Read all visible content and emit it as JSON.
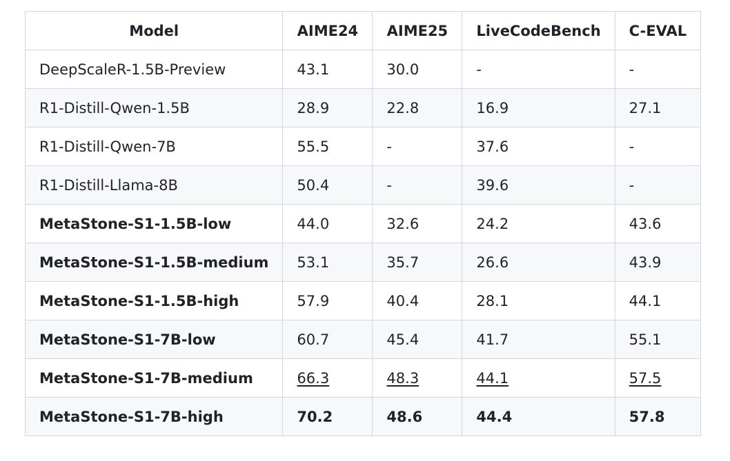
{
  "table": {
    "headers": [
      "Model",
      "AIME24",
      "AIME25",
      "LiveCodeBench",
      "C-EVAL"
    ],
    "rows": [
      {
        "cells": [
          "DeepScaleR-1.5B-Preview",
          "43.1",
          "30.0",
          "-",
          "-"
        ],
        "model_bold": false,
        "values_bold": false,
        "values_underlined": false
      },
      {
        "cells": [
          "R1-Distill-Qwen-1.5B",
          "28.9",
          "22.8",
          "16.9",
          "27.1"
        ],
        "model_bold": false,
        "values_bold": false,
        "values_underlined": false
      },
      {
        "cells": [
          "R1-Distill-Qwen-7B",
          "55.5",
          "-",
          "37.6",
          "-"
        ],
        "model_bold": false,
        "values_bold": false,
        "values_underlined": false
      },
      {
        "cells": [
          "R1-Distill-Llama-8B",
          "50.4",
          "-",
          "39.6",
          "-"
        ],
        "model_bold": false,
        "values_bold": false,
        "values_underlined": false
      },
      {
        "cells": [
          "MetaStone-S1-1.5B-low",
          "44.0",
          "32.6",
          "24.2",
          "43.6"
        ],
        "model_bold": true,
        "values_bold": false,
        "values_underlined": false
      },
      {
        "cells": [
          "MetaStone-S1-1.5B-medium",
          "53.1",
          "35.7",
          "26.6",
          "43.9"
        ],
        "model_bold": true,
        "values_bold": false,
        "values_underlined": false
      },
      {
        "cells": [
          "MetaStone-S1-1.5B-high",
          "57.9",
          "40.4",
          "28.1",
          "44.1"
        ],
        "model_bold": true,
        "values_bold": false,
        "values_underlined": false
      },
      {
        "cells": [
          "MetaStone-S1-7B-low",
          "60.7",
          "45.4",
          "41.7",
          "55.1"
        ],
        "model_bold": true,
        "values_bold": false,
        "values_underlined": false
      },
      {
        "cells": [
          "MetaStone-S1-7B-medium",
          "66.3",
          "48.3",
          "44.1",
          "57.5"
        ],
        "model_bold": true,
        "values_bold": false,
        "values_underlined": true
      },
      {
        "cells": [
          "MetaStone-S1-7B-high",
          "70.2",
          "48.6",
          "44.4",
          "57.8"
        ],
        "model_bold": true,
        "values_bold": true,
        "values_underlined": false
      }
    ]
  },
  "colors": {
    "border": "#d0d7de",
    "stripe": "#f6f8fa",
    "text": "#1f2328"
  }
}
